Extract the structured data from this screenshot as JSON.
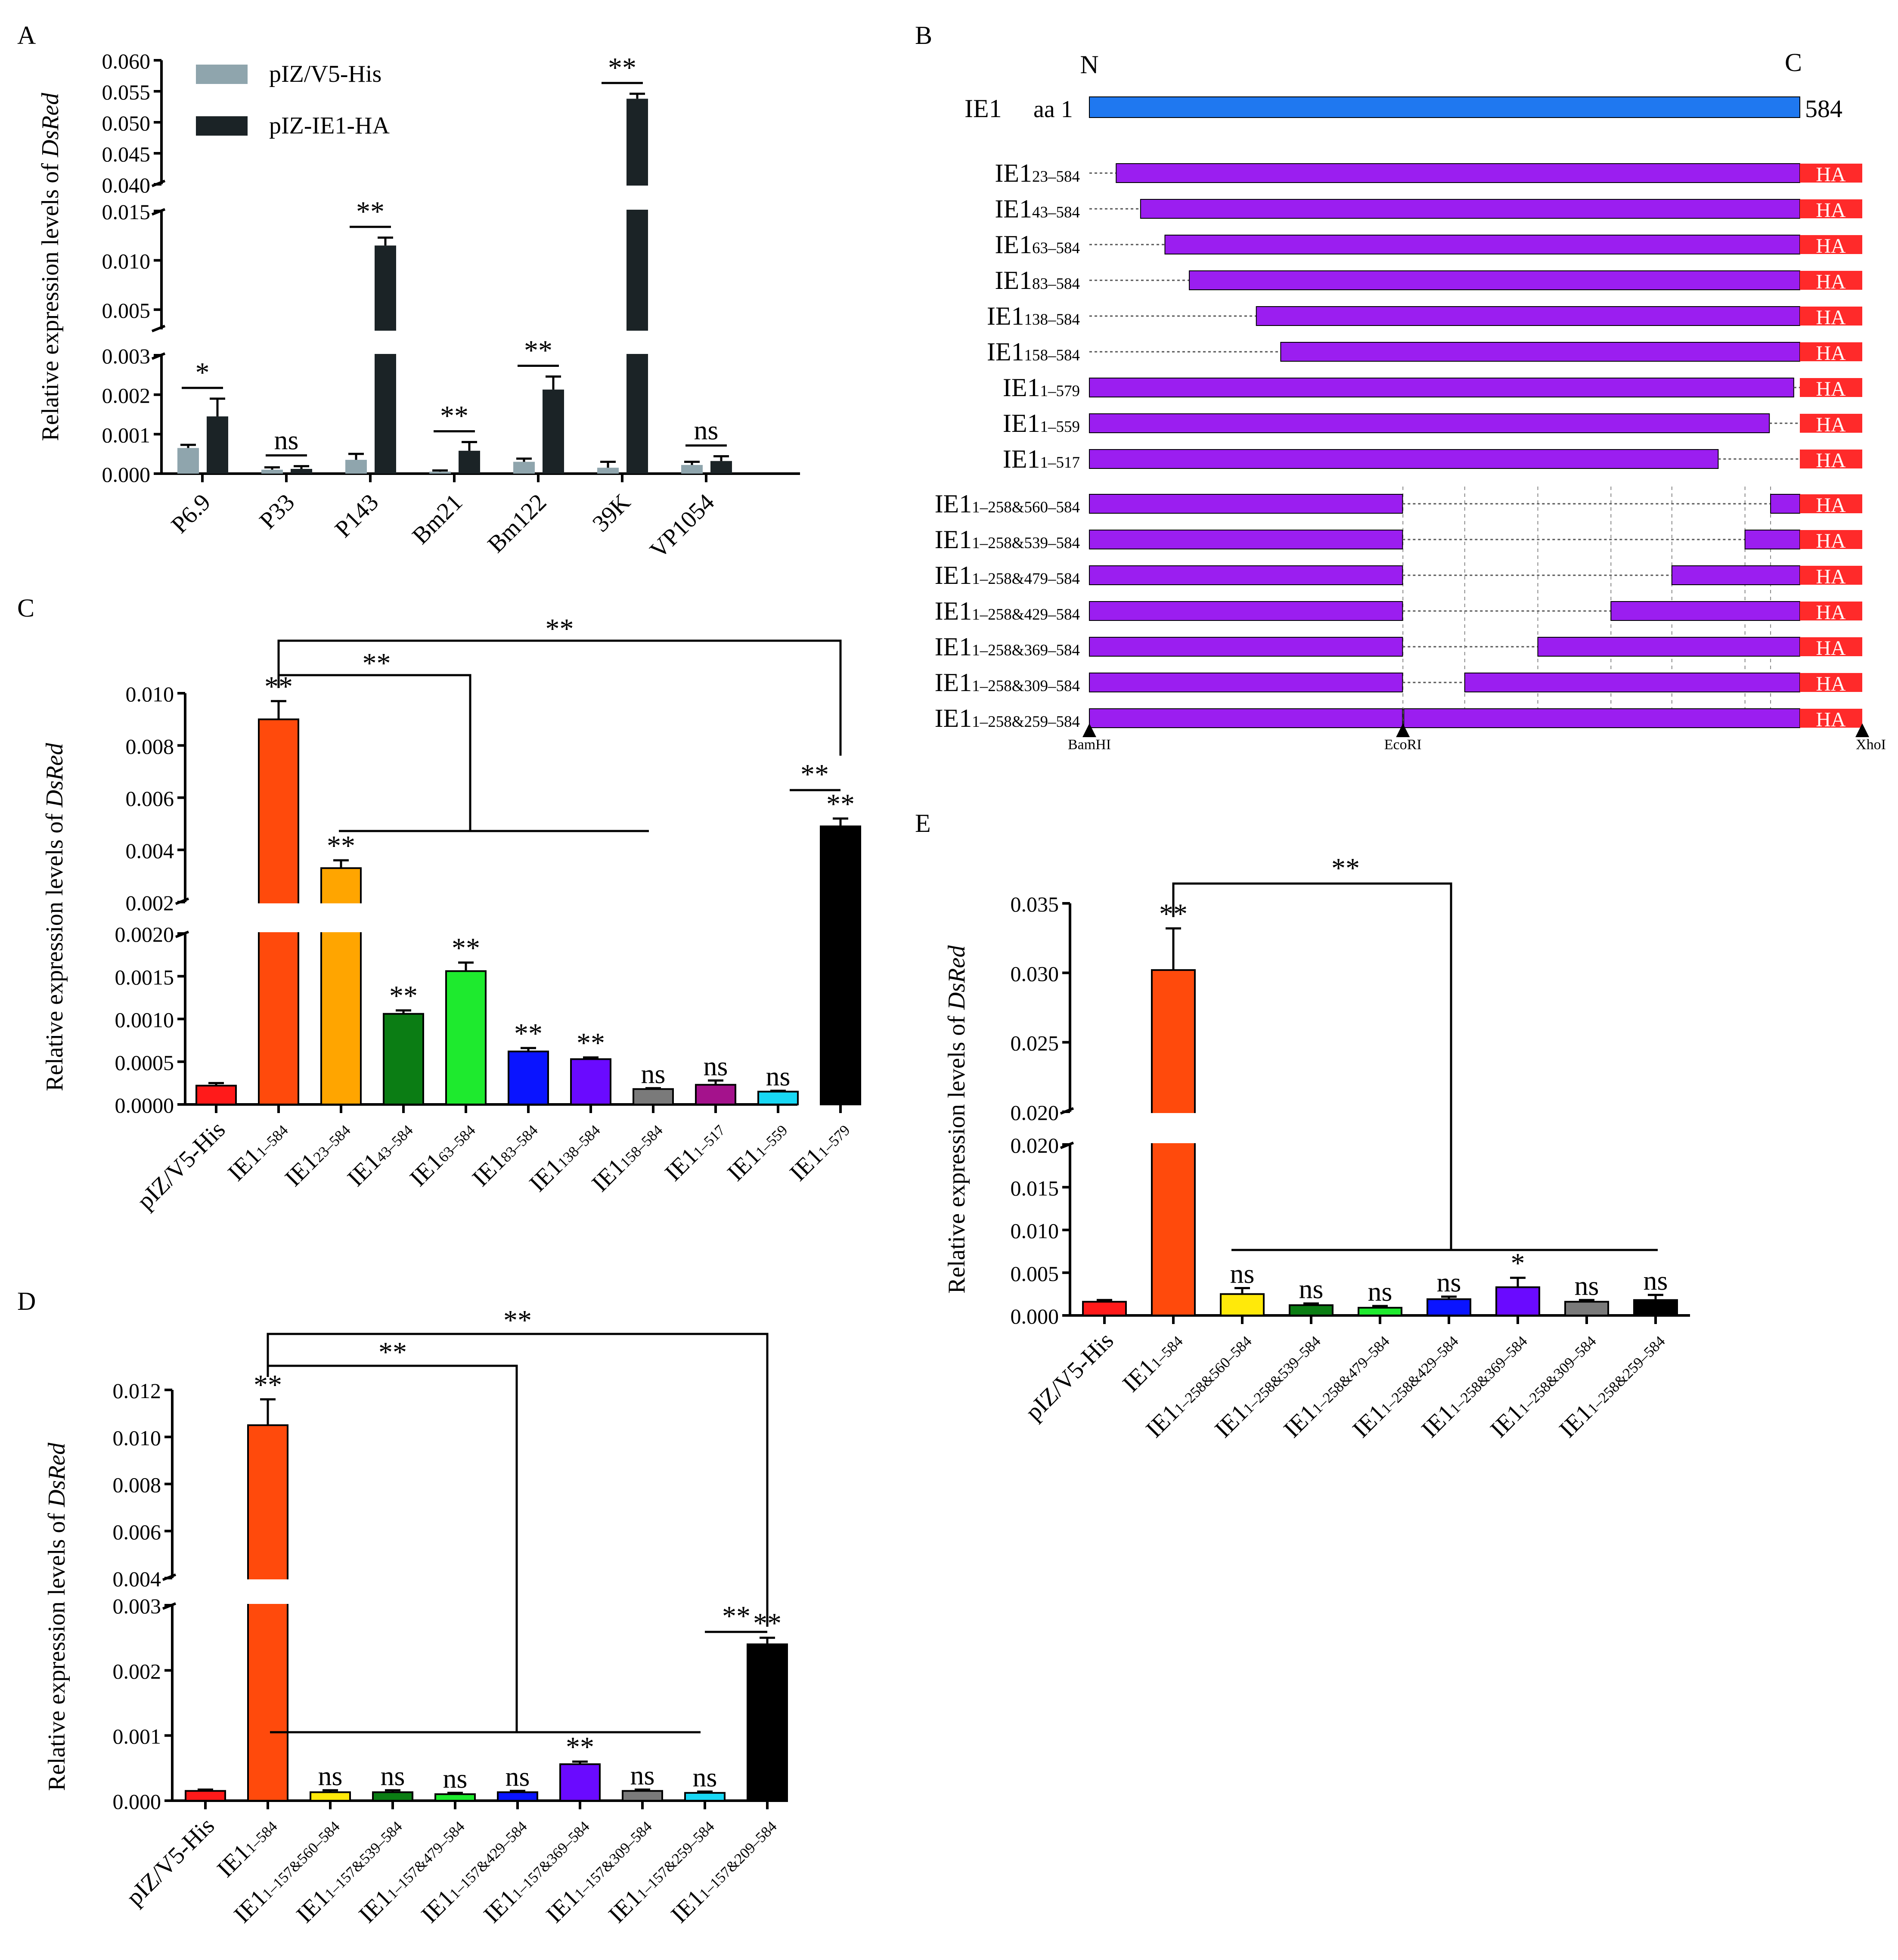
{
  "panels": [
    "A",
    "B",
    "C",
    "D",
    "E"
  ],
  "ylabel_prefix": "Relative expression levels of ",
  "ylabel_gene": "DsRed",
  "colors": {
    "empty_vector": "#8fa5ad",
    "ie1": "#1b2326",
    "blue_bar": "#1f78f0",
    "violet_bar": "#9b1ef0",
    "ha_tag": "#ff2a2a"
  },
  "chart_data": [
    {
      "panel": "A",
      "type": "bar",
      "title": "",
      "xlabel": "",
      "ylabel": "Relative expression levels of DsRed",
      "categories": [
        "P6.9",
        "P33",
        "P143",
        "Bm21",
        "Bm122",
        "39K",
        "VP1054"
      ],
      "legend": [
        "pIZ/V5-His",
        "pIZ-IE1-HA"
      ],
      "legend_position": "top-left",
      "series": [
        {
          "name": "pIZ/V5-His",
          "color": "#8fa5ad",
          "values": [
            0.00065,
            0.0001,
            0.00035,
            5e-05,
            0.0003,
            0.00015,
            0.00022
          ],
          "errors": [
            8e-05,
            6e-05,
            0.00015,
            3e-05,
            8e-05,
            0.00015,
            8e-05
          ]
        },
        {
          "name": "pIZ-IE1-HA",
          "color": "#1b2326",
          "values": [
            0.00145,
            0.00012,
            0.0115,
            0.00058,
            0.00213,
            0.0538,
            0.00032
          ],
          "errors": [
            0.00045,
            7e-05,
            0.0008,
            0.00022,
            0.00033,
            0.0008,
            0.00012
          ]
        }
      ],
      "axis_segments": [
        {
          "ylim": [
            0,
            0.003
          ],
          "ticks": [
            "0.000",
            "0.001",
            "0.002",
            "0.003"
          ]
        },
        {
          "ylim": [
            0.003,
            0.015
          ],
          "ticks": [
            "0.005",
            "0.010",
            "0.015"
          ]
        },
        {
          "ylim": [
            0.04,
            0.06
          ],
          "ticks": [
            "0.040",
            "0.045",
            "0.050",
            "0.055",
            "0.060"
          ]
        }
      ],
      "significance": [
        "*",
        "ns",
        "**",
        "**",
        "**",
        "**",
        "ns"
      ]
    },
    {
      "panel": "B",
      "type": "diagram",
      "n_label": "N",
      "c_label": "C",
      "full_length": {
        "name": "IE1",
        "start_label": "aa 1",
        "end_label": "584",
        "start": 1,
        "end": 584
      },
      "tag": "HA",
      "constructs": [
        {
          "base": "IE1",
          "sub": "23–584",
          "segments": [
            [
              23,
              584
            ]
          ]
        },
        {
          "base": "IE1",
          "sub": "43–584",
          "segments": [
            [
              43,
              584
            ]
          ]
        },
        {
          "base": "IE1",
          "sub": "63–584",
          "segments": [
            [
              63,
              584
            ]
          ]
        },
        {
          "base": "IE1",
          "sub": "83–584",
          "segments": [
            [
              83,
              584
            ]
          ]
        },
        {
          "base": "IE1",
          "sub": "138–584",
          "segments": [
            [
              138,
              584
            ]
          ]
        },
        {
          "base": "IE1",
          "sub": "158–584",
          "segments": [
            [
              158,
              584
            ]
          ]
        },
        {
          "base": "IE1",
          "sub": "1–579",
          "segments": [
            [
              1,
              579
            ]
          ]
        },
        {
          "base": "IE1",
          "sub": "1–559",
          "segments": [
            [
              1,
              559
            ]
          ]
        },
        {
          "base": "IE1",
          "sub": "1–517",
          "segments": [
            [
              1,
              517
            ]
          ]
        },
        {
          "base": "IE1",
          "sub": "1–258&560–584",
          "segments": [
            [
              1,
              258
            ],
            [
              560,
              584
            ]
          ]
        },
        {
          "base": "IE1",
          "sub": "1–258&539–584",
          "segments": [
            [
              1,
              258
            ],
            [
              539,
              584
            ]
          ]
        },
        {
          "base": "IE1",
          "sub": "1–258&479–584",
          "segments": [
            [
              1,
              258
            ],
            [
              479,
              584
            ]
          ]
        },
        {
          "base": "IE1",
          "sub": "1–258&429–584",
          "segments": [
            [
              1,
              258
            ],
            [
              429,
              584
            ]
          ]
        },
        {
          "base": "IE1",
          "sub": "1–258&369–584",
          "segments": [
            [
              1,
              258
            ],
            [
              369,
              584
            ]
          ]
        },
        {
          "base": "IE1",
          "sub": "1–258&309–584",
          "segments": [
            [
              1,
              258
            ],
            [
              309,
              584
            ]
          ]
        },
        {
          "base": "IE1",
          "sub": "1–258&259–584",
          "segments": [
            [
              1,
              258
            ],
            [
              259,
              584
            ]
          ]
        }
      ],
      "restriction_sites": [
        "BamHI",
        "EcoRI",
        "XhoI"
      ]
    },
    {
      "panel": "C",
      "type": "bar",
      "ylabel": "Relative expression levels of DsRed",
      "categories": [
        {
          "base": "pIZ/V5-His",
          "sub": ""
        },
        {
          "base": "IE1",
          "sub": "1–584"
        },
        {
          "base": "IE1",
          "sub": "23–584"
        },
        {
          "base": "IE1",
          "sub": "43–584"
        },
        {
          "base": "IE1",
          "sub": "63–584"
        },
        {
          "base": "IE1",
          "sub": "83–584"
        },
        {
          "base": "IE1",
          "sub": "138–584"
        },
        {
          "base": "IE1",
          "sub": "158–584"
        },
        {
          "base": "IE1",
          "sub": "1–517"
        },
        {
          "base": "IE1",
          "sub": "1–559"
        },
        {
          "base": "IE1",
          "sub": "1–579"
        }
      ],
      "values": [
        0.00022,
        0.009,
        0.0033,
        0.00106,
        0.00156,
        0.00062,
        0.00053,
        0.00018,
        0.00023,
        0.00015,
        0.0049
      ],
      "errors": [
        3e-05,
        0.0007,
        0.0003,
        4e-05,
        0.0001,
        4e-05,
        2e-05,
        1e-05,
        5e-05,
        1e-05,
        0.0003
      ],
      "colors": [
        "#ff1a1a",
        "#ff4a0c",
        "#ffa500",
        "#0b7d14",
        "#1eea2e",
        "#0a14ff",
        "#6a0aff",
        "#7a7a7a",
        "#a4128c",
        "#18d8f4",
        "#000000"
      ],
      "significance": [
        "",
        "**",
        "**",
        "**",
        "**",
        "**",
        "**",
        "ns",
        "ns",
        "ns",
        "**"
      ],
      "bracket_labels": [
        "**",
        "**",
        "**"
      ],
      "axis_segments": [
        {
          "ylim": [
            0,
            0.002
          ],
          "ticks": [
            "0.0000",
            "0.0005",
            "0.0010",
            "0.0015",
            "0.0020"
          ]
        },
        {
          "ylim": [
            0.002,
            0.01
          ],
          "ticks": [
            "0.002",
            "0.004",
            "0.006",
            "0.008",
            "0.010"
          ]
        }
      ]
    },
    {
      "panel": "D",
      "type": "bar",
      "ylabel": "Relative expression levels of DsRed",
      "categories": [
        {
          "base": "pIZ/V5-His",
          "sub": ""
        },
        {
          "base": "IE1",
          "sub": "1–584"
        },
        {
          "base": "IE1",
          "sub": "1–157&560–584"
        },
        {
          "base": "IE1",
          "sub": "1–157&539–584"
        },
        {
          "base": "IE1",
          "sub": "1–157&479–584"
        },
        {
          "base": "IE1",
          "sub": "1–157&429–584"
        },
        {
          "base": "IE1",
          "sub": "1–157&369–584"
        },
        {
          "base": "IE1",
          "sub": "1–157&309–584"
        },
        {
          "base": "IE1",
          "sub": "1–157&259–584"
        },
        {
          "base": "IE1",
          "sub": "1–157&209–584"
        }
      ],
      "values": [
        0.00015,
        0.0105,
        0.00013,
        0.00013,
        0.0001,
        0.00013,
        0.00056,
        0.00015,
        0.00012,
        0.0024
      ],
      "errors": [
        2e-05,
        0.0011,
        3e-05,
        3e-05,
        2e-05,
        2e-05,
        4e-05,
        2e-05,
        2e-05,
        0.0001
      ],
      "colors": [
        "#ff1a1a",
        "#ff4a0c",
        "#ffe90a",
        "#0b7d14",
        "#1eea2e",
        "#0a14ff",
        "#6a0aff",
        "#7a7a7a",
        "#18d8f4",
        "#000000"
      ],
      "significance": [
        "",
        "**",
        "ns",
        "ns",
        "ns",
        "ns",
        "**",
        "ns",
        "ns",
        "**"
      ],
      "bracket_labels": [
        "**",
        "**",
        "**"
      ],
      "axis_segments": [
        {
          "ylim": [
            0,
            0.003
          ],
          "ticks": [
            "0.000",
            "0.001",
            "0.002",
            "0.003"
          ]
        },
        {
          "ylim": [
            0.004,
            0.012
          ],
          "ticks": [
            "0.004",
            "0.006",
            "0.008",
            "0.010",
            "0.012"
          ]
        }
      ]
    },
    {
      "panel": "E",
      "type": "bar",
      "ylabel": "Relative expression levels of DsRed",
      "categories": [
        {
          "base": "pIZ/V5-His",
          "sub": ""
        },
        {
          "base": "IE1",
          "sub": "1–584"
        },
        {
          "base": "IE1",
          "sub": "1–258&560–584"
        },
        {
          "base": "IE1",
          "sub": "1–258&539–584"
        },
        {
          "base": "IE1",
          "sub": "1–258&479–584"
        },
        {
          "base": "IE1",
          "sub": "1–258&429–584"
        },
        {
          "base": "IE1",
          "sub": "1–258&369–584"
        },
        {
          "base": "IE1",
          "sub": "1–258&309–584"
        },
        {
          "base": "IE1",
          "sub": "1–258&259–584"
        }
      ],
      "values": [
        0.0016,
        0.0302,
        0.0025,
        0.0012,
        0.0009,
        0.0019,
        0.0033,
        0.0016,
        0.0018
      ],
      "errors": [
        0.0002,
        0.003,
        0.0007,
        0.0002,
        0.0002,
        0.0003,
        0.0011,
        0.0002,
        0.0006
      ],
      "colors": [
        "#ff1a1a",
        "#ff4a0c",
        "#ffe90a",
        "#0b7d14",
        "#1eea2e",
        "#0a14ff",
        "#6a0aff",
        "#7a7a7a",
        "#000000"
      ],
      "significance": [
        "",
        "**",
        "ns",
        "ns",
        "ns",
        "ns",
        "*",
        "ns",
        "ns"
      ],
      "bracket_labels": [
        "**"
      ],
      "axis_segments": [
        {
          "ylim": [
            0,
            0.02
          ],
          "ticks": [
            "0.000",
            "0.005",
            "0.010",
            "0.015",
            "0.020"
          ]
        },
        {
          "ylim": [
            0.02,
            0.035
          ],
          "ticks": [
            "0.020",
            "0.025",
            "0.030",
            "0.035"
          ]
        }
      ]
    }
  ]
}
